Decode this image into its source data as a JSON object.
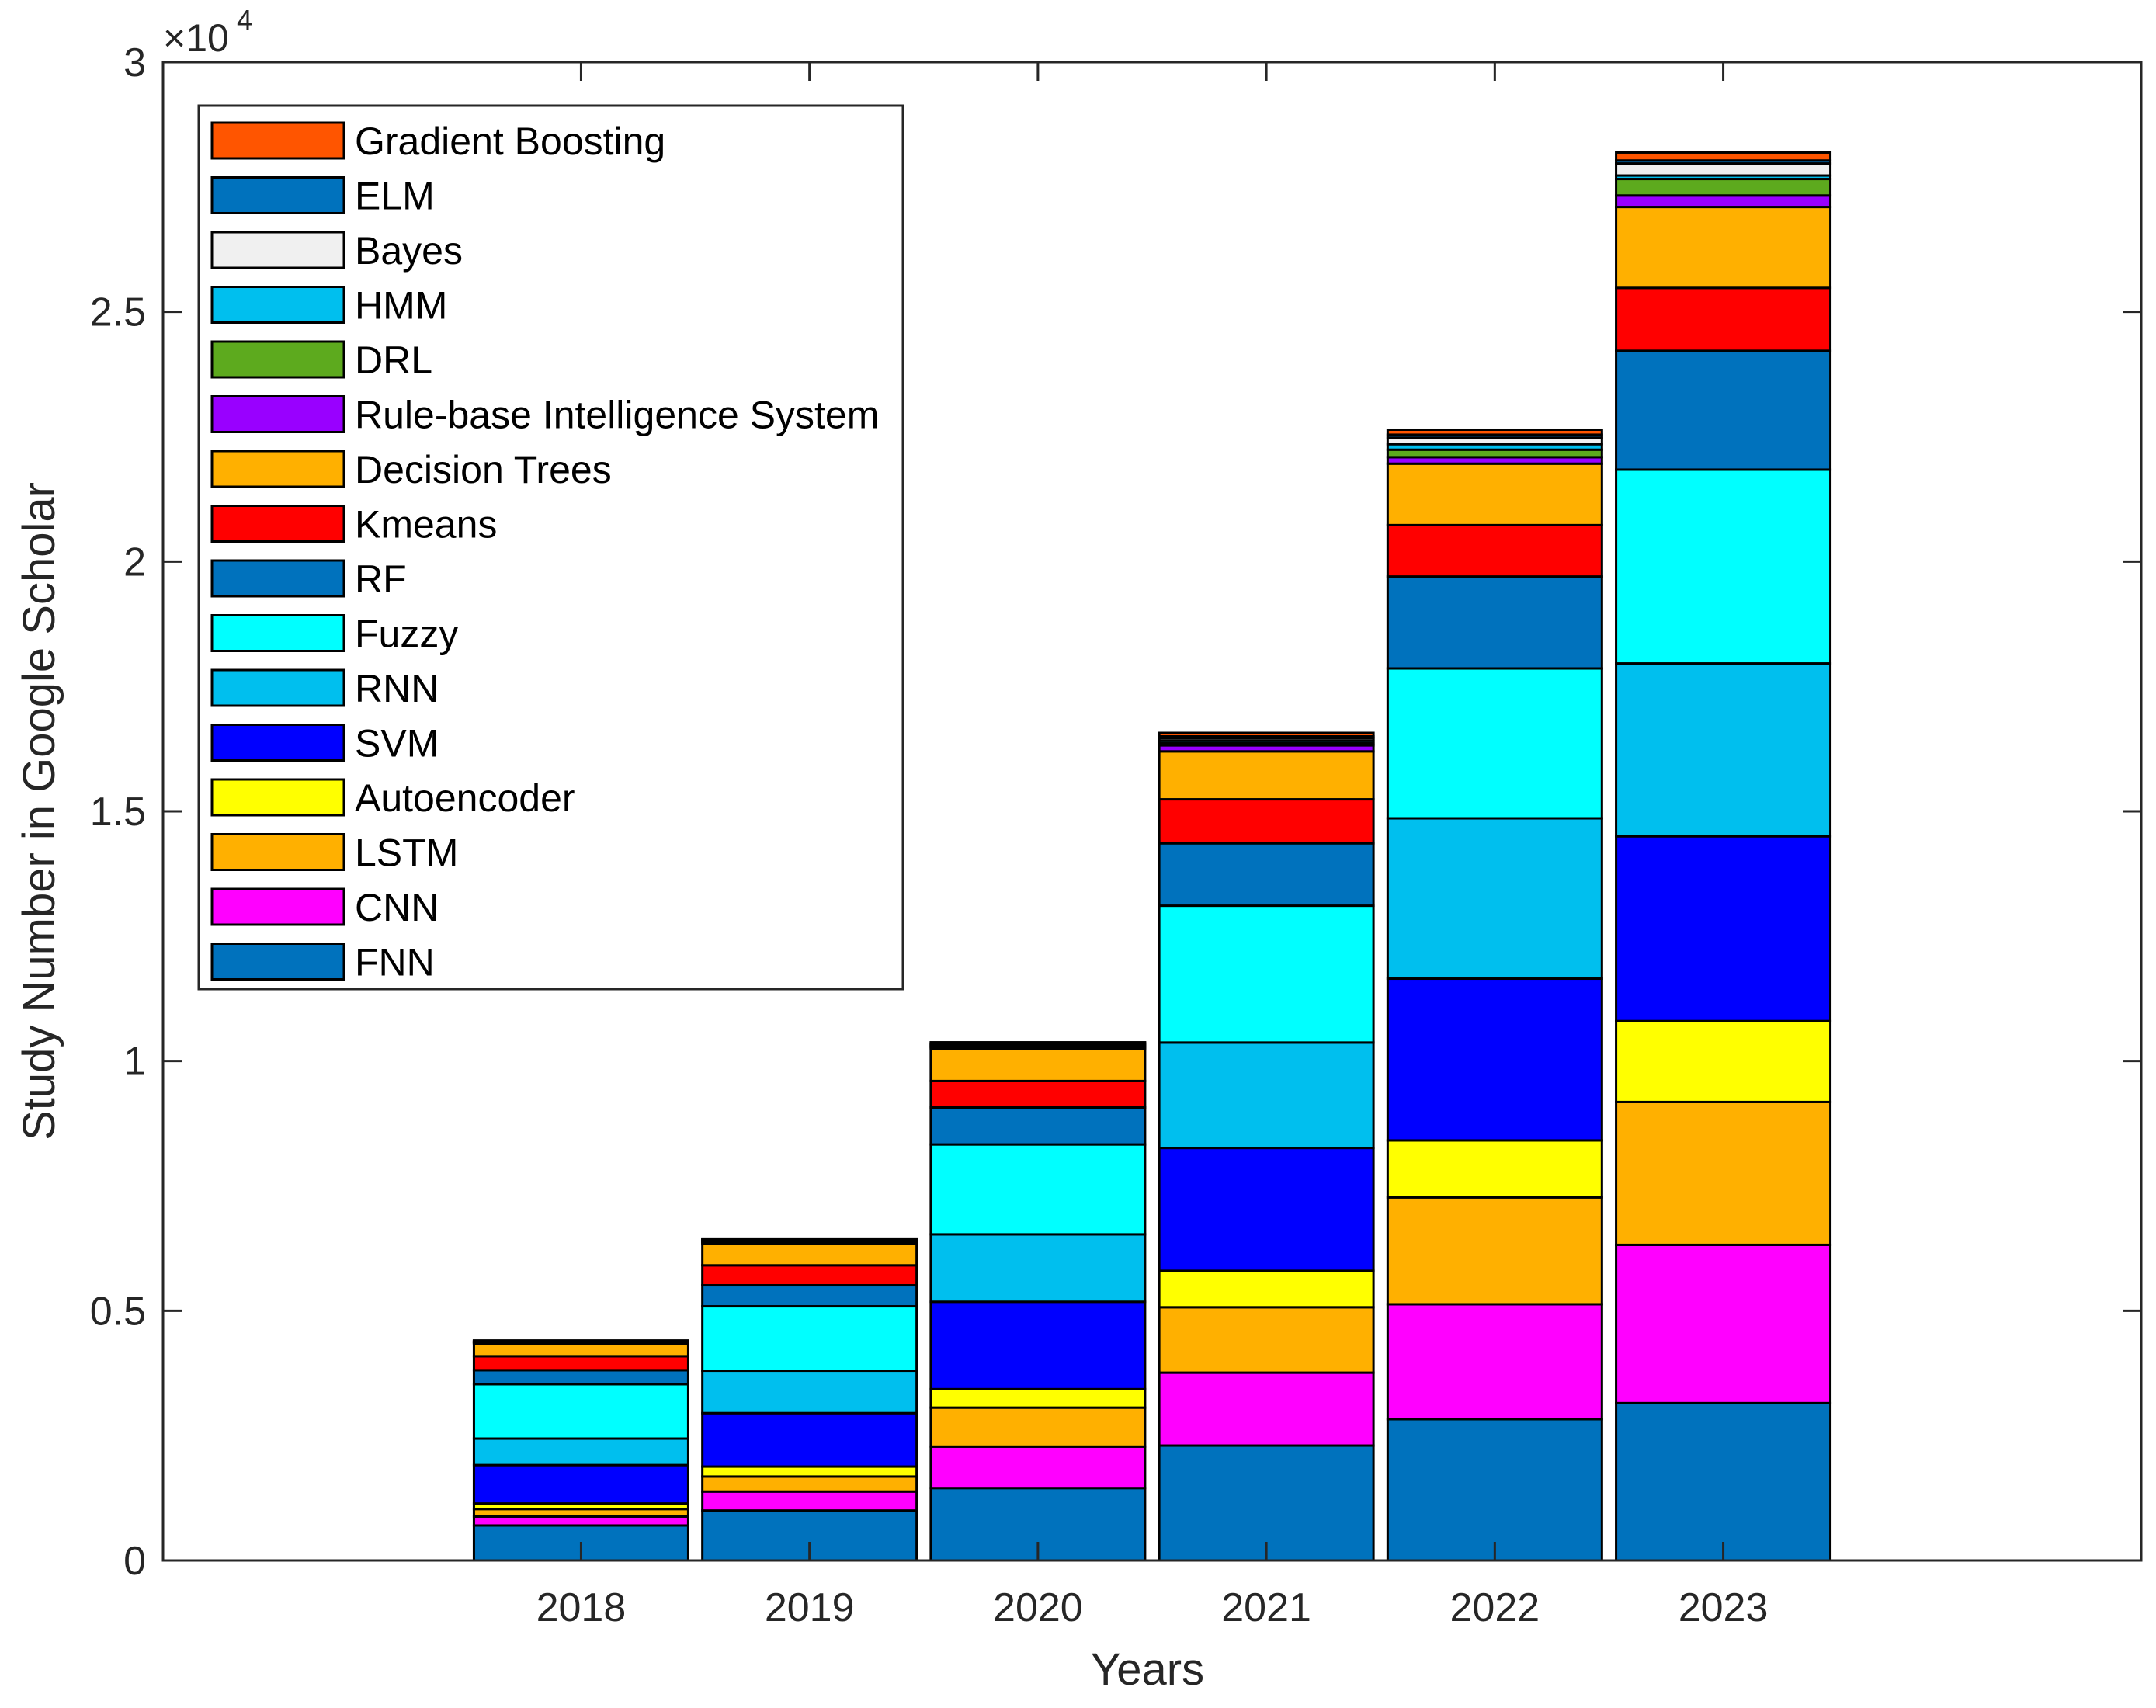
{
  "chart_data": {
    "type": "bar",
    "stacked": true,
    "title": "",
    "xlabel": "Years",
    "ylabel": "Study Number in Google Scholar",
    "y_exponent_base": "×10",
    "y_exponent_power": "4",
    "ylim": [
      0,
      30000
    ],
    "y_ticks": [
      0,
      5000,
      10000,
      15000,
      20000,
      25000,
      30000
    ],
    "y_tick_labels": [
      "0",
      "0.5",
      "1",
      "1.5",
      "2",
      "2.5",
      "3"
    ],
    "x_range": [
      2016.17,
      2024.83
    ],
    "categories": [
      "2018",
      "2019",
      "2020",
      "2021",
      "2022",
      "2023"
    ],
    "legend_position": "top-left",
    "series": [
      {
        "name": "FNN",
        "color": "#0072BD",
        "values": [
          700,
          1000,
          1450,
          2300,
          2830,
          3150
        ]
      },
      {
        "name": "CNN",
        "color": "#FF00FF",
        "values": [
          180,
          380,
          830,
          1460,
          2300,
          3170
        ]
      },
      {
        "name": "LSTM",
        "color": "#FFB000",
        "values": [
          150,
          300,
          780,
          1310,
          2140,
          2860
        ]
      },
      {
        "name": "Autoencoder",
        "color": "#FFFF00",
        "values": [
          110,
          200,
          370,
          730,
          1140,
          1620
        ]
      },
      {
        "name": "SVM",
        "color": "#0000FF",
        "values": [
          770,
          1070,
          1750,
          2460,
          3240,
          3700
        ]
      },
      {
        "name": "RNN",
        "color": "#00BFEE",
        "values": [
          530,
          850,
          1350,
          2110,
          3210,
          3460
        ]
      },
      {
        "name": "Fuzzy",
        "color": "#00FFFF",
        "values": [
          1090,
          1290,
          1800,
          2740,
          3000,
          3880
        ]
      },
      {
        "name": "RF",
        "color": "#0072BD",
        "values": [
          280,
          420,
          740,
          1250,
          1840,
          2380
        ]
      },
      {
        "name": "Kmeans",
        "color": "#FF0000",
        "values": [
          280,
          400,
          530,
          880,
          1030,
          1260
        ]
      },
      {
        "name": "Decision Trees",
        "color": "#FFB000",
        "values": [
          250,
          440,
          650,
          960,
          1230,
          1620
        ]
      },
      {
        "name": "Rule-base Intelligence System",
        "color": "#9900FF",
        "values": [
          15,
          20,
          25,
          120,
          130,
          230
        ]
      },
      {
        "name": "DRL",
        "color": "#5DAA1E",
        "values": [
          10,
          15,
          20,
          40,
          150,
          330
        ]
      },
      {
        "name": "HMM",
        "color": "#00BFEE",
        "values": [
          10,
          15,
          20,
          50,
          110,
          70
        ]
      },
      {
        "name": "Bayes",
        "color": "#F0F0F0",
        "values": [
          10,
          15,
          20,
          50,
          130,
          240
        ]
      },
      {
        "name": "ELM",
        "color": "#0072BD",
        "values": [
          10,
          15,
          20,
          40,
          60,
          60
        ]
      },
      {
        "name": "Gradient Boosting",
        "color": "#FF5500",
        "values": [
          10,
          15,
          20,
          70,
          100,
          160
        ]
      }
    ],
    "legend_order": [
      "Gradient Boosting",
      "ELM",
      "Bayes",
      "HMM",
      "DRL",
      "Rule-base Intelligence System",
      "Decision Trees",
      "Kmeans",
      "RF",
      "Fuzzy",
      "RNN",
      "SVM",
      "Autoencoder",
      "LSTM",
      "CNN",
      "FNN"
    ]
  }
}
